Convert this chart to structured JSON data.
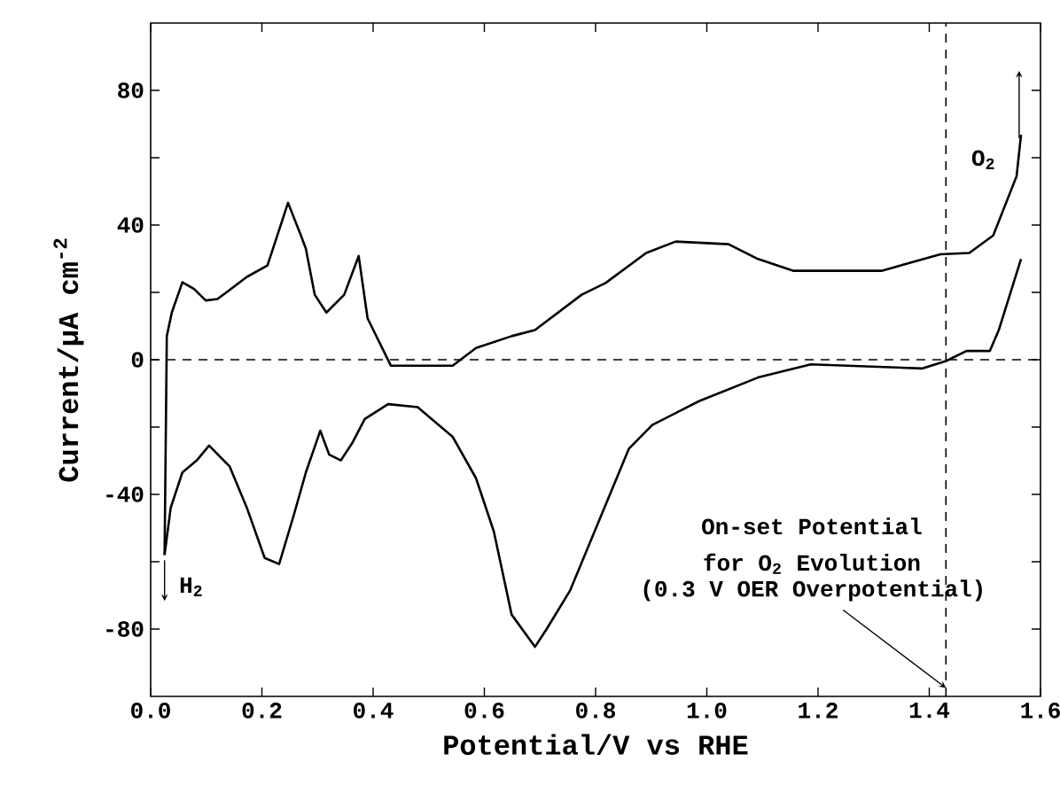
{
  "chart_data": {
    "type": "line",
    "xlabel": "Potential/V vs RHE",
    "ylabel": "Current/µA cm$^{-2}$",
    "xlim": [
      0,
      1.6
    ],
    "ylim": [
      -100,
      100
    ],
    "xticks": [
      {
        "value": 0,
        "label": "0.0"
      },
      0.2,
      0.4,
      0.6,
      0.8,
      {
        "value": 1,
        "label": "1.0"
      },
      1.2,
      1.4,
      1.6
    ],
    "yticks": [
      -80,
      {
        "value": -60,
        "label": null
      },
      -40,
      {
        "value": -20,
        "label": null
      },
      0,
      {
        "value": 20,
        "label": null
      },
      40,
      {
        "value": 60,
        "label": null
      },
      80
    ],
    "series": [
      {
        "color": "#000000",
        "x": [
          0.025,
          0.029,
          0.038,
          0.057,
          0.078,
          0.099,
          0.12,
          0.173,
          0.21,
          0.247,
          0.268,
          0.279,
          0.295,
          0.316,
          0.348,
          0.374,
          0.39,
          0.432,
          0.543,
          0.585,
          0.649,
          0.691,
          0.775,
          0.818,
          0.891,
          0.944,
          1.039,
          1.092,
          1.156,
          1.314,
          1.42,
          1.472,
          1.515,
          1.557,
          1.565
        ],
        "values": [
          -58,
          7,
          14,
          23,
          21,
          17.6,
          18,
          24.6,
          28,
          46.6,
          37.8,
          33,
          19.3,
          14,
          19.3,
          30.8,
          12.3,
          -1.8,
          -1.8,
          3.5,
          7,
          8.8,
          19.3,
          22.8,
          31.7,
          35.1,
          34.3,
          29.9,
          26.4,
          26.4,
          31.3,
          31.7,
          36.9,
          54.5,
          66.8
        ]
      },
      {
        "color": "#000000",
        "x": [
          1.565,
          1.525,
          1.509,
          1.467,
          1.43,
          1.388,
          1.187,
          1.092,
          0.986,
          0.902,
          0.86,
          0.807,
          0.754,
          0.712,
          0.691,
          0.649,
          0.617,
          0.585,
          0.543,
          0.48,
          0.427,
          0.385,
          0.363,
          0.342,
          0.321,
          0.305,
          0.279,
          0.258,
          0.231,
          0.205,
          0.173,
          0.142,
          0.105,
          0.083,
          0.057,
          0.036,
          0.025
        ],
        "values": [
          29.9,
          8.8,
          2.6,
          2.6,
          -0.4,
          -2.6,
          -1.4,
          -5.3,
          -12.3,
          -19.4,
          -26.4,
          -47.5,
          -68.6,
          -80,
          -85.3,
          -75.7,
          -51,
          -35.2,
          -22.9,
          -14.1,
          -13.2,
          -17.6,
          -24.6,
          -29.9,
          -28.2,
          -21.1,
          -33.5,
          -45.8,
          -60.7,
          -58.9,
          -44,
          -31.7,
          -25.5,
          -29.9,
          -33.5,
          -44,
          -58
        ]
      }
    ],
    "ref_lines": [
      {
        "axis": "y",
        "value": 0,
        "line_style": "dashed"
      },
      {
        "axis": "x",
        "value": 1.43,
        "line_style": "dashed"
      }
    ],
    "annotations": [
      "O$_{2}$",
      {
        "text": "H$_{2}$",
        "x": 0.025,
        "y": -58
      },
      "On-set Potential",
      "for O$_{2}$ Evolution",
      {
        "text": "(0.3 V OER Overpotential)",
        "x": 1.43,
        "y": -97.5
      }
    ]
  }
}
